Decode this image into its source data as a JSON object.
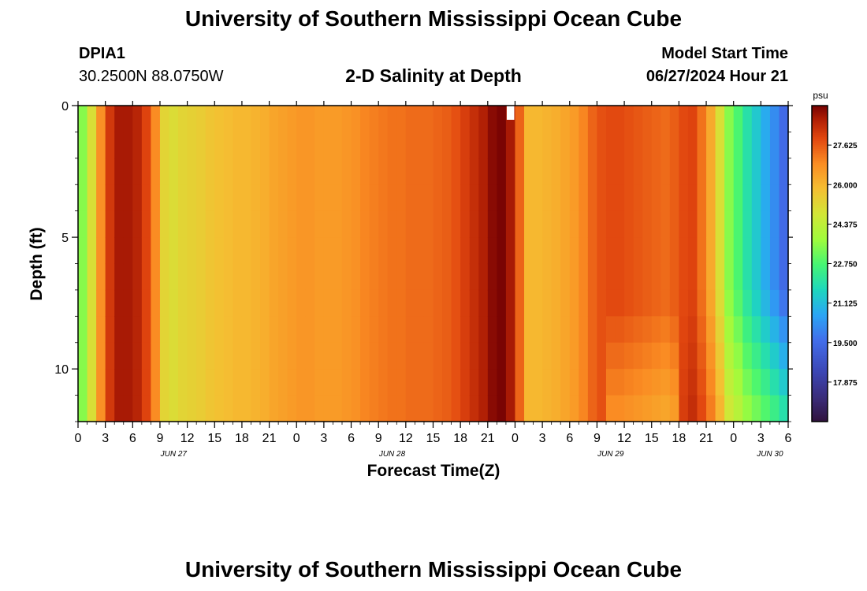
{
  "header": {
    "title": "University of Southern Mississippi Ocean Cube",
    "station": "DPIA1",
    "coords": "30.2500N  88.0750W",
    "plot_title": "2-D Salinity at Depth",
    "start_label": "Model Start Time",
    "start_value": "06/27/2024 Hour 21"
  },
  "footer": {
    "title": "University of Southern Mississippi Ocean Cube"
  },
  "chart_data": {
    "type": "heatmap",
    "title": "2-D Salinity at Depth",
    "xlabel": "Forecast Time(Z)",
    "ylabel": "Depth (ft)",
    "x_tick_labels": [
      "0",
      "3",
      "6",
      "9",
      "12",
      "15",
      "18",
      "21",
      "0",
      "3",
      "6",
      "9",
      "12",
      "15",
      "18",
      "21",
      "0",
      "3",
      "6",
      "9",
      "12",
      "15",
      "18",
      "21",
      "0",
      "3",
      "6"
    ],
    "date_labels": [
      "JUN 27",
      "JUN 28",
      "JUN 29",
      "JUN 30"
    ],
    "y_ticks": [
      0,
      5,
      10
    ],
    "ylim": [
      0,
      12
    ],
    "y_reversed": true,
    "colorbar": {
      "unit": "psu",
      "labels": [
        "27.625",
        "26.000",
        "24.375",
        "22.750",
        "21.125",
        "19.500",
        "17.875"
      ],
      "range": [
        16.25,
        29.25
      ]
    },
    "time_hours": [
      0,
      1,
      2,
      3,
      4,
      5,
      6,
      7,
      8,
      9,
      10,
      11,
      12,
      13,
      14,
      15,
      16,
      17,
      18,
      19,
      20,
      21,
      22,
      23,
      24,
      25,
      26,
      27,
      28,
      29,
      30,
      31,
      32,
      33,
      34,
      35,
      36,
      37,
      38,
      39,
      40,
      41,
      42,
      43,
      44,
      45,
      46,
      47,
      48,
      49,
      50,
      51,
      52,
      53,
      54,
      55,
      56,
      57,
      58,
      59,
      60,
      61,
      62,
      63,
      64,
      65,
      66,
      67,
      68,
      69,
      70,
      71,
      72,
      73,
      74,
      75,
      76,
      77,
      78
    ],
    "surface_salinity": [
      23.5,
      25.0,
      26.8,
      28.2,
      28.8,
      28.8,
      28.6,
      28.0,
      26.9,
      25.3,
      25.1,
      25.3,
      25.4,
      25.5,
      25.7,
      25.8,
      25.9,
      26.0,
      26.0,
      26.1,
      26.2,
      26.4,
      26.5,
      26.6,
      26.7,
      26.7,
      26.6,
      26.6,
      26.6,
      26.7,
      26.8,
      27.0,
      27.1,
      27.2,
      27.3,
      27.3,
      27.4,
      27.4,
      27.4,
      27.5,
      27.6,
      27.8,
      28.1,
      28.4,
      28.7,
      29.1,
      29.4,
      28.8,
      27.5,
      26.0,
      26.0,
      26.1,
      26.2,
      26.4,
      26.6,
      27.0,
      27.5,
      27.8,
      27.9,
      27.9,
      27.8,
      27.7,
      27.6,
      27.5,
      27.4,
      27.6,
      27.9,
      28.0,
      27.3,
      26.3,
      25.0,
      23.5,
      22.8,
      22.0,
      21.4,
      20.8,
      20.2,
      19.5,
      18.6
    ],
    "surface_gap_hour": 47
  }
}
